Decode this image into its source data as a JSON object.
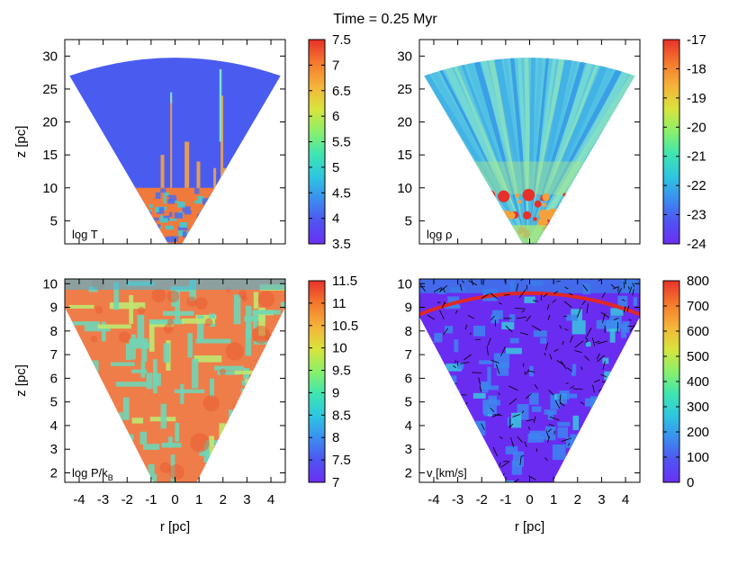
{
  "title": "Time = 0.25 Myr",
  "panels": [
    {
      "id": "T",
      "label": "log T",
      "quantity_symbol": "T",
      "colorbar": {
        "min": 3.5,
        "max": 7.5,
        "ticks": [
          "7.5",
          "7",
          "6.5",
          "6",
          "5.5",
          "5",
          "4.5",
          "4",
          "3.5"
        ]
      },
      "x_ticks": [
        "-4",
        "-3",
        "-2",
        "-1",
        "0",
        "1",
        "2",
        "3",
        "4"
      ],
      "y_ticks": [
        "30",
        "25",
        "20",
        "15",
        "10",
        "5"
      ],
      "y_label": "z [pc]",
      "x_label": ""
    },
    {
      "id": "rho",
      "label": "log ρ",
      "colorbar": {
        "min": -24,
        "max": -17,
        "ticks": [
          "-17",
          "-18",
          "-19",
          "-20",
          "-21",
          "-22",
          "-23",
          "-24"
        ]
      },
      "x_ticks": [
        "-4",
        "-3",
        "-2",
        "-1",
        "0",
        "1",
        "2",
        "3",
        "4"
      ],
      "y_ticks": [
        "30",
        "25",
        "20",
        "15",
        "10",
        "5"
      ],
      "y_label": "",
      "x_label": ""
    },
    {
      "id": "P",
      "label": "log P/k",
      "label_sub": "B",
      "colorbar": {
        "min": 7,
        "max": 11.5,
        "ticks": [
          "11.5",
          "11",
          "10.5",
          "10",
          "9.5",
          "9",
          "8.5",
          "8",
          "7.5",
          "7"
        ]
      },
      "x_ticks": [
        "-4",
        "-3",
        "-2",
        "-1",
        "0",
        "1",
        "2",
        "3",
        "4"
      ],
      "y_ticks": [
        "10",
        "9",
        "8",
        "7",
        "6",
        "5",
        "4",
        "3",
        "2"
      ],
      "y_label": "z [pc]",
      "x_label": "r [pc]"
    },
    {
      "id": "v",
      "label": "v [km/s]",
      "colorbar": {
        "min": 0,
        "max": 800,
        "ticks": [
          "800",
          "700",
          "600",
          "500",
          "400",
          "300",
          "200",
          "100",
          "0"
        ]
      },
      "x_ticks": [
        "-4",
        "-3",
        "-2",
        "-1",
        "0",
        "1",
        "2",
        "3",
        "4"
      ],
      "y_ticks": [
        "10",
        "9",
        "8",
        "7",
        "6",
        "5",
        "4",
        "3",
        "2"
      ],
      "y_label": "",
      "x_label": "r [pc]"
    }
  ],
  "chart_data": [
    {
      "type": "heatmap",
      "title": "Time = 0.25 Myr",
      "quantity": "log T",
      "xlabel": "",
      "ylabel": "z [pc]",
      "xlim": [
        -4.6,
        4.6
      ],
      "ylim": [
        1.5,
        32.5
      ],
      "colorbar_range": [
        3.5,
        7.5
      ],
      "colormap": "rainbow",
      "dominant_value": 4.0,
      "hot_region_below_z": 10,
      "hot_value": 6.8
    },
    {
      "type": "heatmap",
      "quantity": "log ρ",
      "xlabel": "",
      "ylabel": "",
      "xlim": [
        -4.6,
        4.6
      ],
      "ylim": [
        1.5,
        32.5
      ],
      "colorbar_range": [
        -24,
        -17
      ],
      "colormap": "rainbow",
      "dominant_value": -20.5,
      "dense_region_below_z": 9,
      "dense_value": -17.5
    },
    {
      "type": "heatmap",
      "quantity": "log P/k_B",
      "xlabel": "r [pc]",
      "ylabel": "z [pc]",
      "xlim": [
        -4.6,
        4.6
      ],
      "ylim": [
        1.6,
        10.2
      ],
      "colorbar_range": [
        7,
        11.5
      ],
      "colormap": "rainbow",
      "dominant_value": 10.6,
      "filament_value": 9.0
    },
    {
      "type": "heatmap",
      "quantity": "v [km/s]",
      "xlabel": "r [pc]",
      "ylabel": "",
      "xlim": [
        -4.6,
        4.6
      ],
      "ylim": [
        1.6,
        10.2
      ],
      "colorbar_range": [
        0,
        800
      ],
      "colormap": "rainbow",
      "dominant_value": 50,
      "filament_value": 250,
      "shell_z": 9.6,
      "overlay": "velocity vectors"
    }
  ],
  "colors": {
    "bg_T": "#4a5cf0",
    "hot_T": "#f07a3c",
    "rho_base": "#5cc8e0",
    "rho_dense": "#e8302a",
    "p_base": "#ef7d4a",
    "p_filament": "#6fd6b6",
    "v_base": "#6a2cf0",
    "v_filament": "#3c86f0",
    "shell": "#e02828",
    "colormap_stops": [
      "#6b2ff5",
      "#4f54f0",
      "#3b8ef0",
      "#2ec6e0",
      "#3ee6b0",
      "#8af06a",
      "#d8e43c",
      "#f5b43a",
      "#f57d2e",
      "#e8322a"
    ]
  }
}
